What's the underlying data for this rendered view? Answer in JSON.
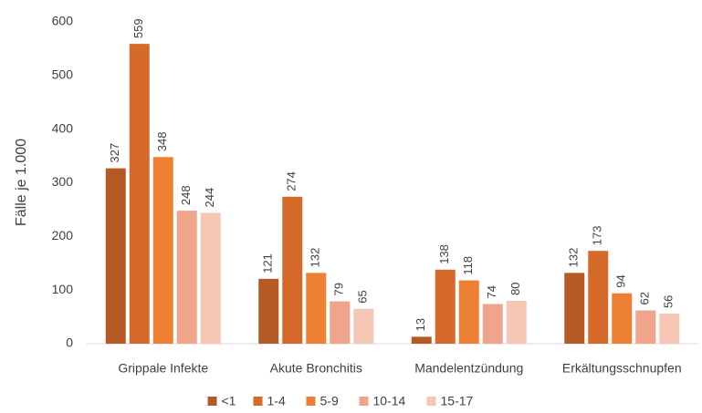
{
  "chart_data": {
    "type": "bar",
    "ylabel": "Fälle je 1.000",
    "categories": [
      "Grippale Infekte",
      "Akute Bronchitis",
      "Mandelentzündung",
      "Erkältungsschnupfen"
    ],
    "series": [
      {
        "name": "<1",
        "color": "#b55a24",
        "values": [
          327,
          121,
          13,
          132
        ]
      },
      {
        "name": "1-4",
        "color": "#d4692a",
        "values": [
          559,
          274,
          138,
          173
        ]
      },
      {
        "name": "5-9",
        "color": "#ee8033",
        "values": [
          348,
          132,
          118,
          94
        ]
      },
      {
        "name": "10-14",
        "color": "#efa58c",
        "values": [
          248,
          79,
          74,
          62
        ]
      },
      {
        "name": "15-17",
        "color": "#f5c6b4",
        "values": [
          244,
          65,
          80,
          56
        ]
      }
    ],
    "ylim": [
      0,
      600
    ],
    "yticks": [
      0,
      100,
      200,
      300,
      400,
      500,
      600
    ],
    "grid": false,
    "legend": "bottom"
  }
}
